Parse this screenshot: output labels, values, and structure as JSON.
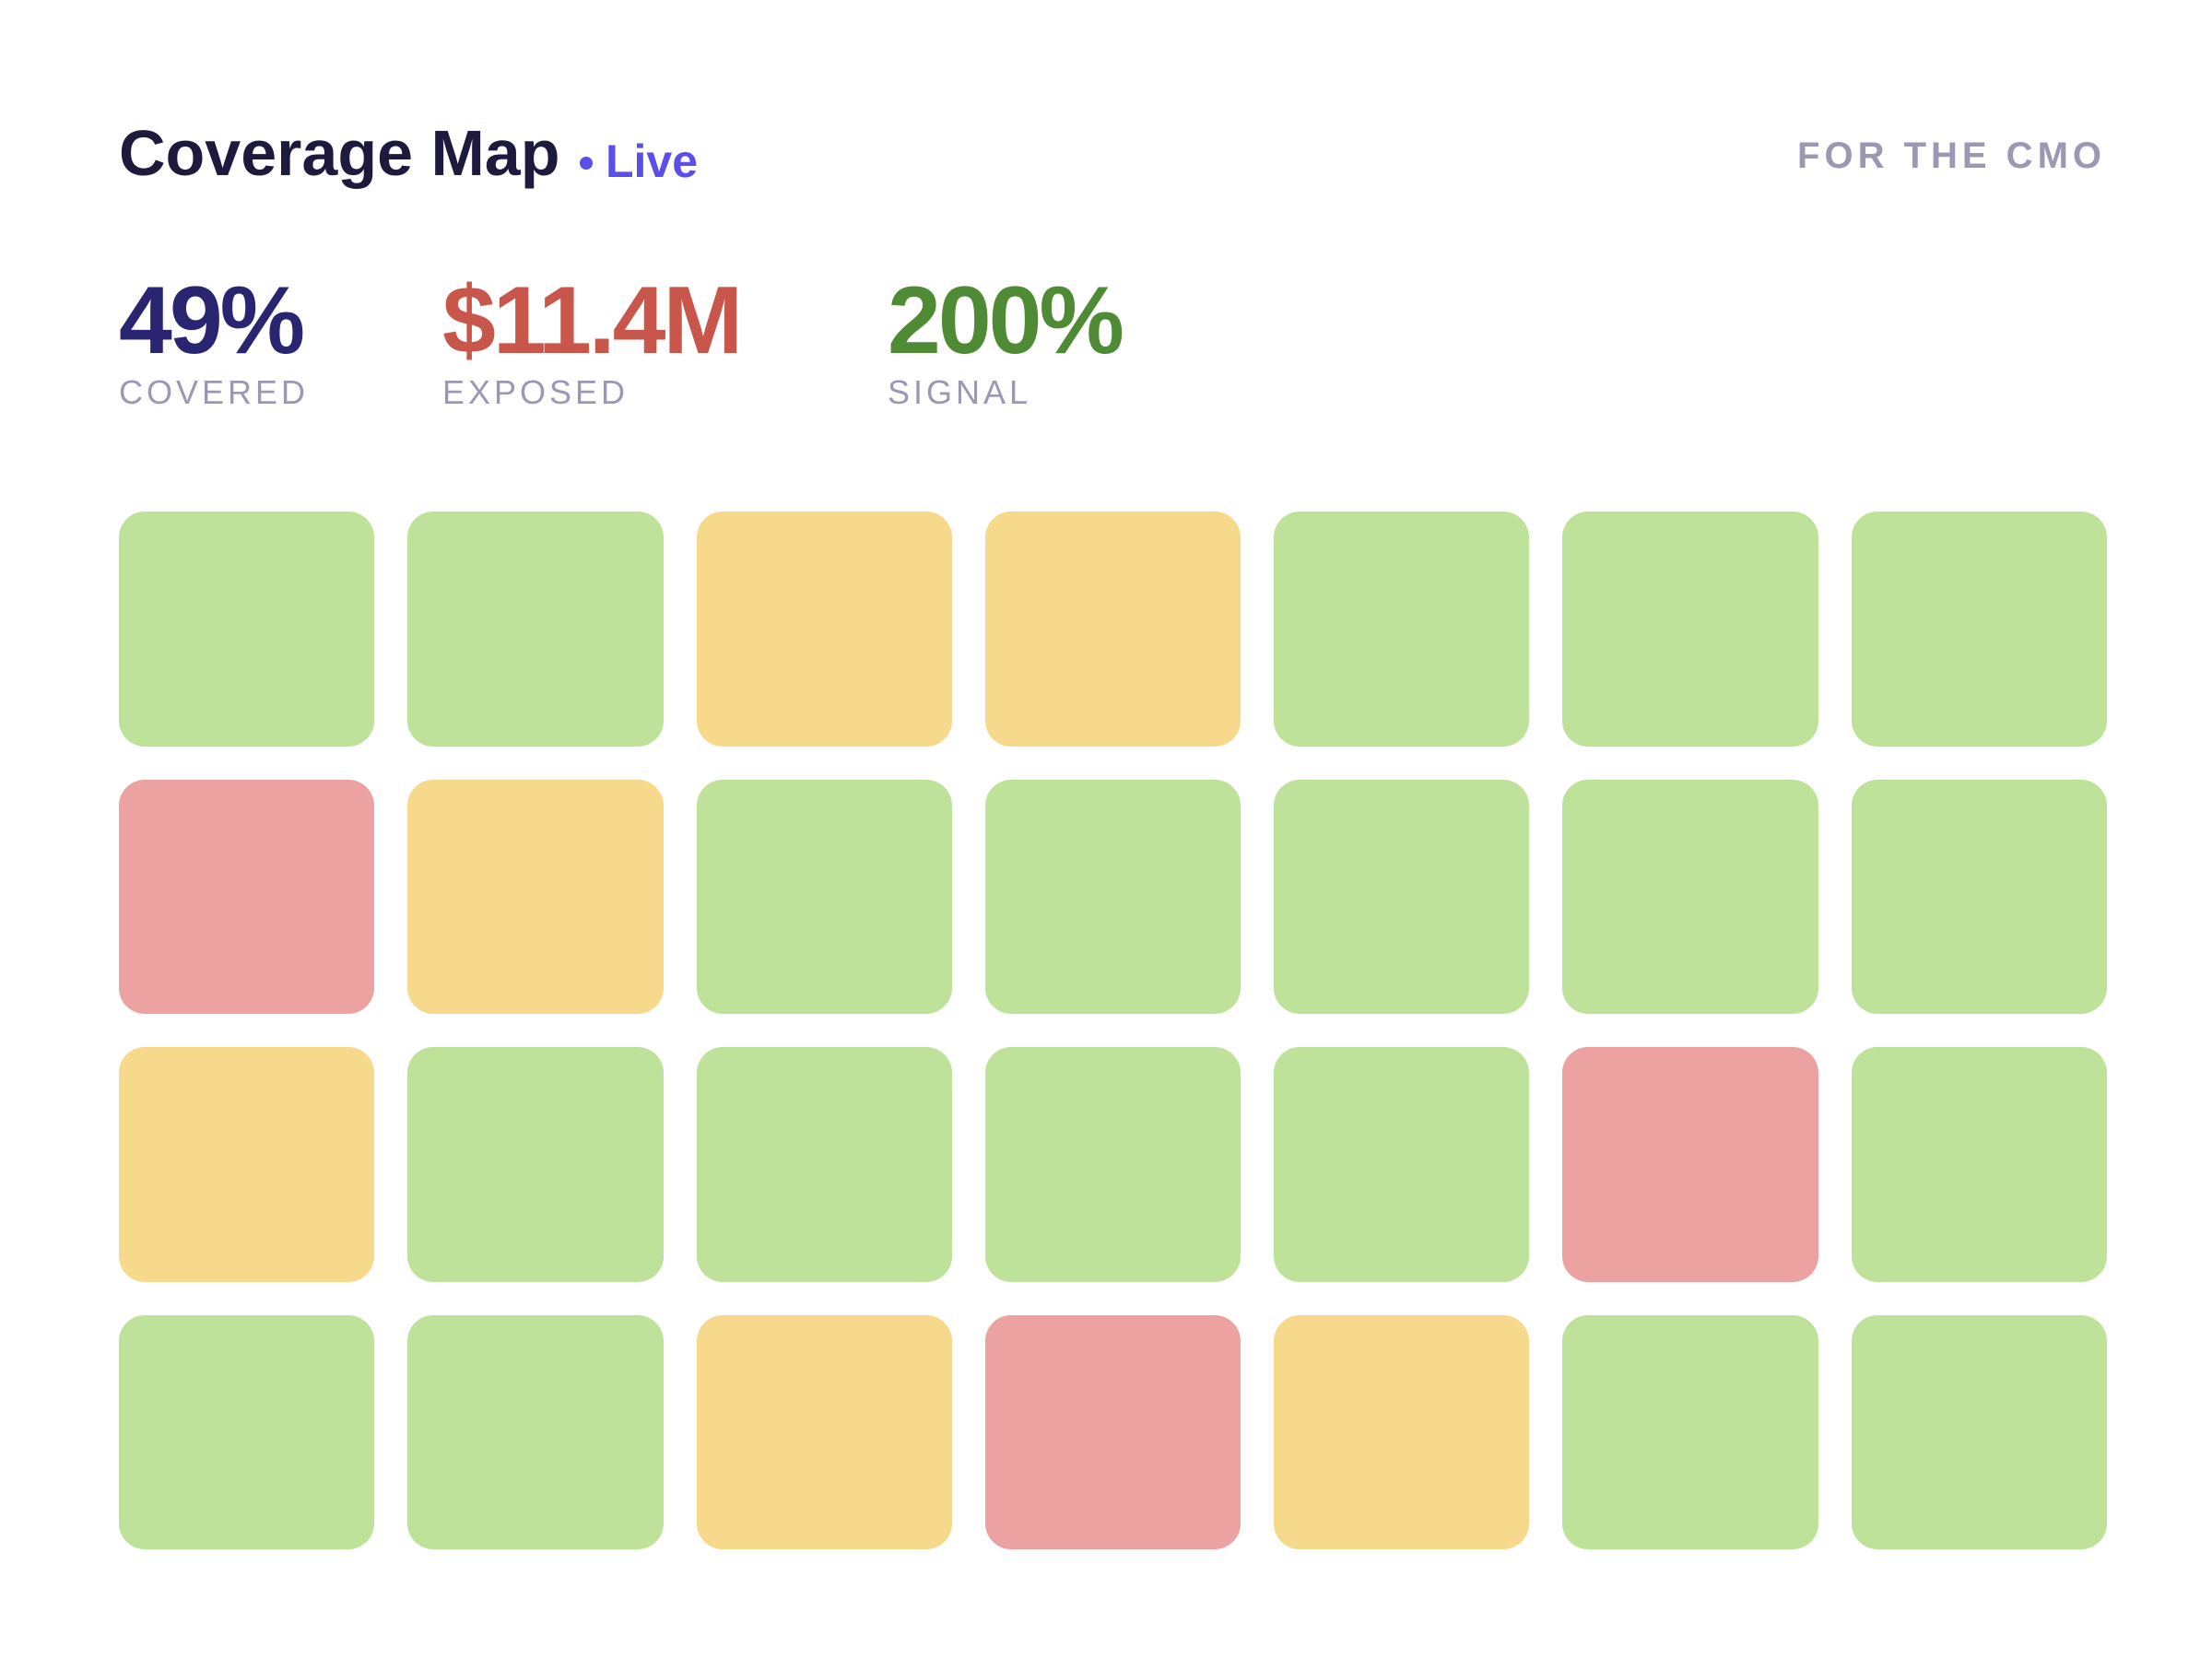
{
  "header": {
    "title": "Coverage Map",
    "live_label": "Live",
    "audience": "FOR THE CMO"
  },
  "kpis": [
    {
      "value": "49%",
      "label": "COVERED",
      "color": "#2a2570"
    },
    {
      "value": "$11.4M",
      "label": "EXPOSED",
      "color": "#c9564b"
    },
    {
      "value": "200%",
      "label": "SIGNAL",
      "color": "#4f8a34"
    }
  ],
  "legend_colors": {
    "covered": "#bfe29a",
    "partial": "#f6d98b",
    "exposed": "#eca2a1"
  },
  "grid": {
    "columns": 7,
    "rows": [
      [
        "covered",
        "covered",
        "partial",
        "partial",
        "covered",
        "covered",
        "covered"
      ],
      [
        "exposed",
        "partial",
        "covered",
        "covered",
        "covered",
        "covered",
        "covered"
      ],
      [
        "partial",
        "covered",
        "covered",
        "covered",
        "covered",
        "exposed",
        "covered"
      ],
      [
        "covered",
        "covered",
        "partial",
        "exposed",
        "partial",
        "covered",
        "covered"
      ]
    ]
  }
}
